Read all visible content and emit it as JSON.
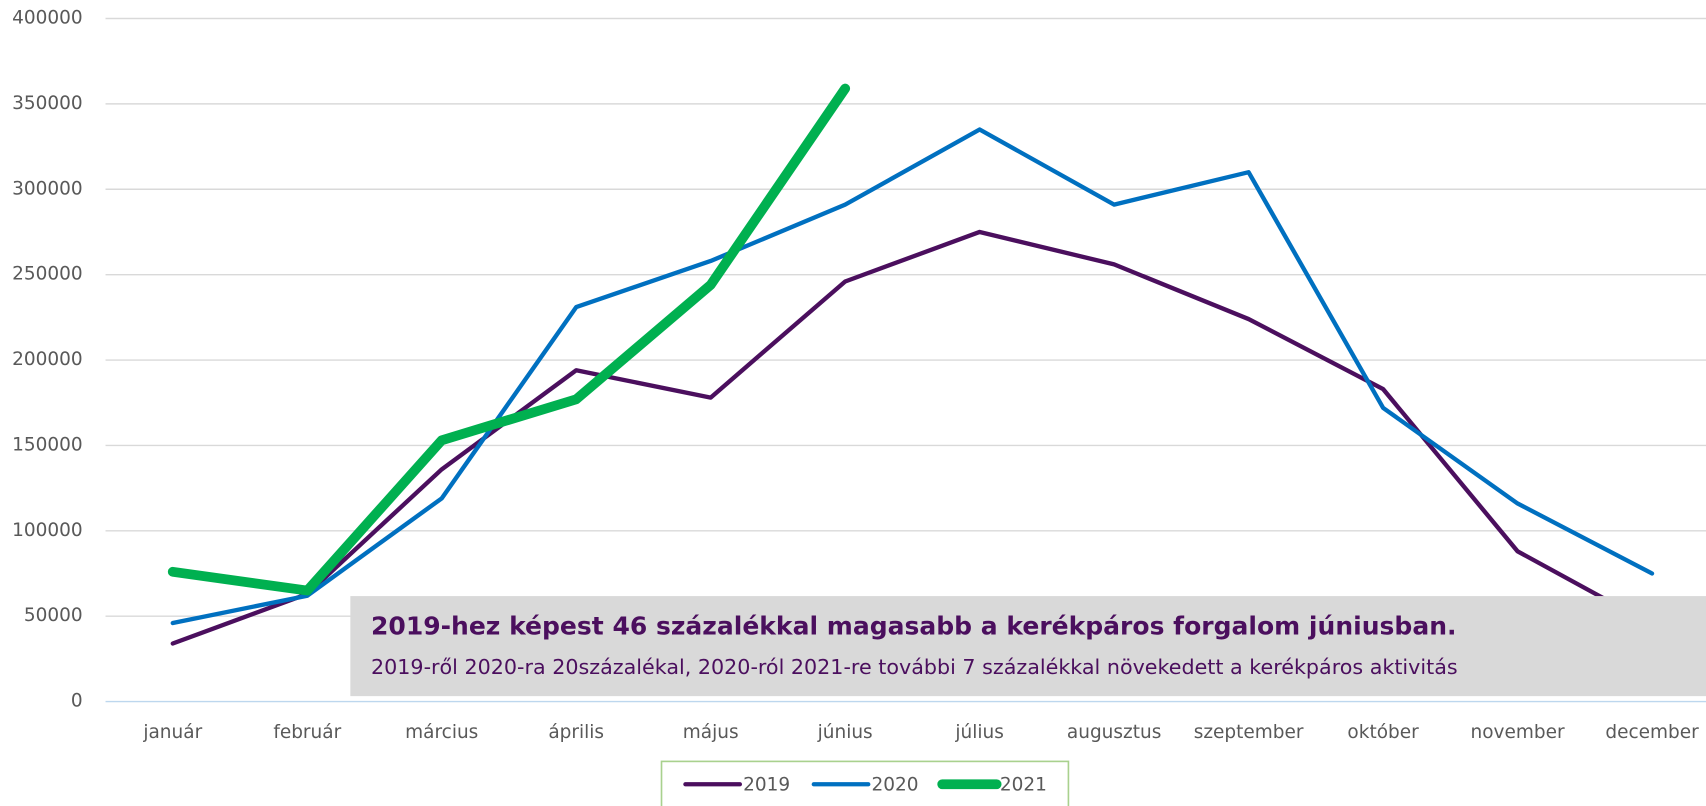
{
  "chart_data": {
    "type": "line",
    "categories": [
      "január",
      "február",
      "március",
      "április",
      "május",
      "június",
      "július",
      "augusztus",
      "szeptember",
      "október",
      "november",
      "december"
    ],
    "series": [
      {
        "name": "2019",
        "color": "#4b0f5e",
        "values": [
          34000,
          63000,
          136000,
          194000,
          178000,
          246000,
          275000,
          256000,
          224000,
          183000,
          88000,
          45000
        ]
      },
      {
        "name": "2020",
        "color": "#0070c0",
        "values": [
          46000,
          62000,
          119000,
          231000,
          258000,
          291000,
          335000,
          291000,
          310000,
          172000,
          116000,
          75000
        ]
      },
      {
        "name": "2021",
        "color": "#00b050",
        "values": [
          76000,
          65000,
          153000,
          177000,
          244000,
          359000,
          null,
          null,
          null,
          null,
          null,
          null
        ]
      }
    ],
    "ylim": [
      0,
      400000
    ],
    "yticks": [
      0,
      50000,
      100000,
      150000,
      200000,
      250000,
      300000,
      350000,
      400000
    ],
    "grid": true,
    "annotation": {
      "title": "2019-hez képest 46 százalékkal magasabb a kerékpáros forgalom júniusban.",
      "text": "2019-ről 2020-ra 20százalékal, 2020-ról 2021-re további 7 százalékkal növekedett a kerékpáros aktivitás"
    }
  }
}
